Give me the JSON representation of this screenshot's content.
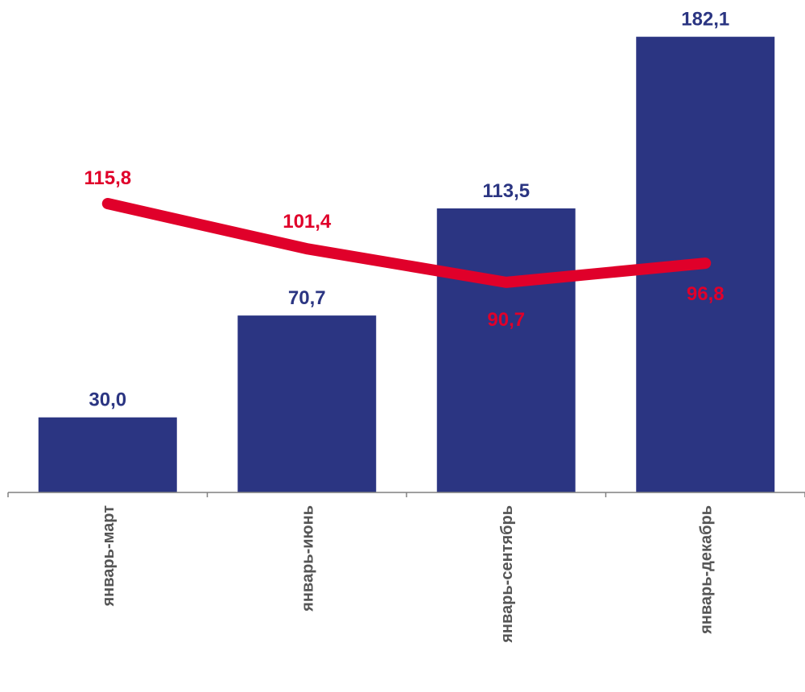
{
  "chart_data": {
    "type": "bar",
    "categories": [
      "январь-март",
      "январь-июнь",
      "январь-сентябрь",
      "январь-декабрь"
    ],
    "series": [
      {
        "type": "bar",
        "values": [
          30.0,
          70.7,
          113.5,
          182.1
        ],
        "labels": [
          "30,0",
          "70,7",
          "113,5",
          "182,1"
        ],
        "color": "#2b3582"
      },
      {
        "type": "line",
        "values": [
          115.8,
          101.4,
          90.7,
          96.8
        ],
        "labels": [
          "115,8",
          "101,4",
          "90,7",
          "96,8"
        ],
        "color": "#e0002a"
      }
    ],
    "title": "",
    "xlabel": "",
    "ylabel": "",
    "grid": false,
    "legend": "none",
    "axis_color": "#808080"
  }
}
